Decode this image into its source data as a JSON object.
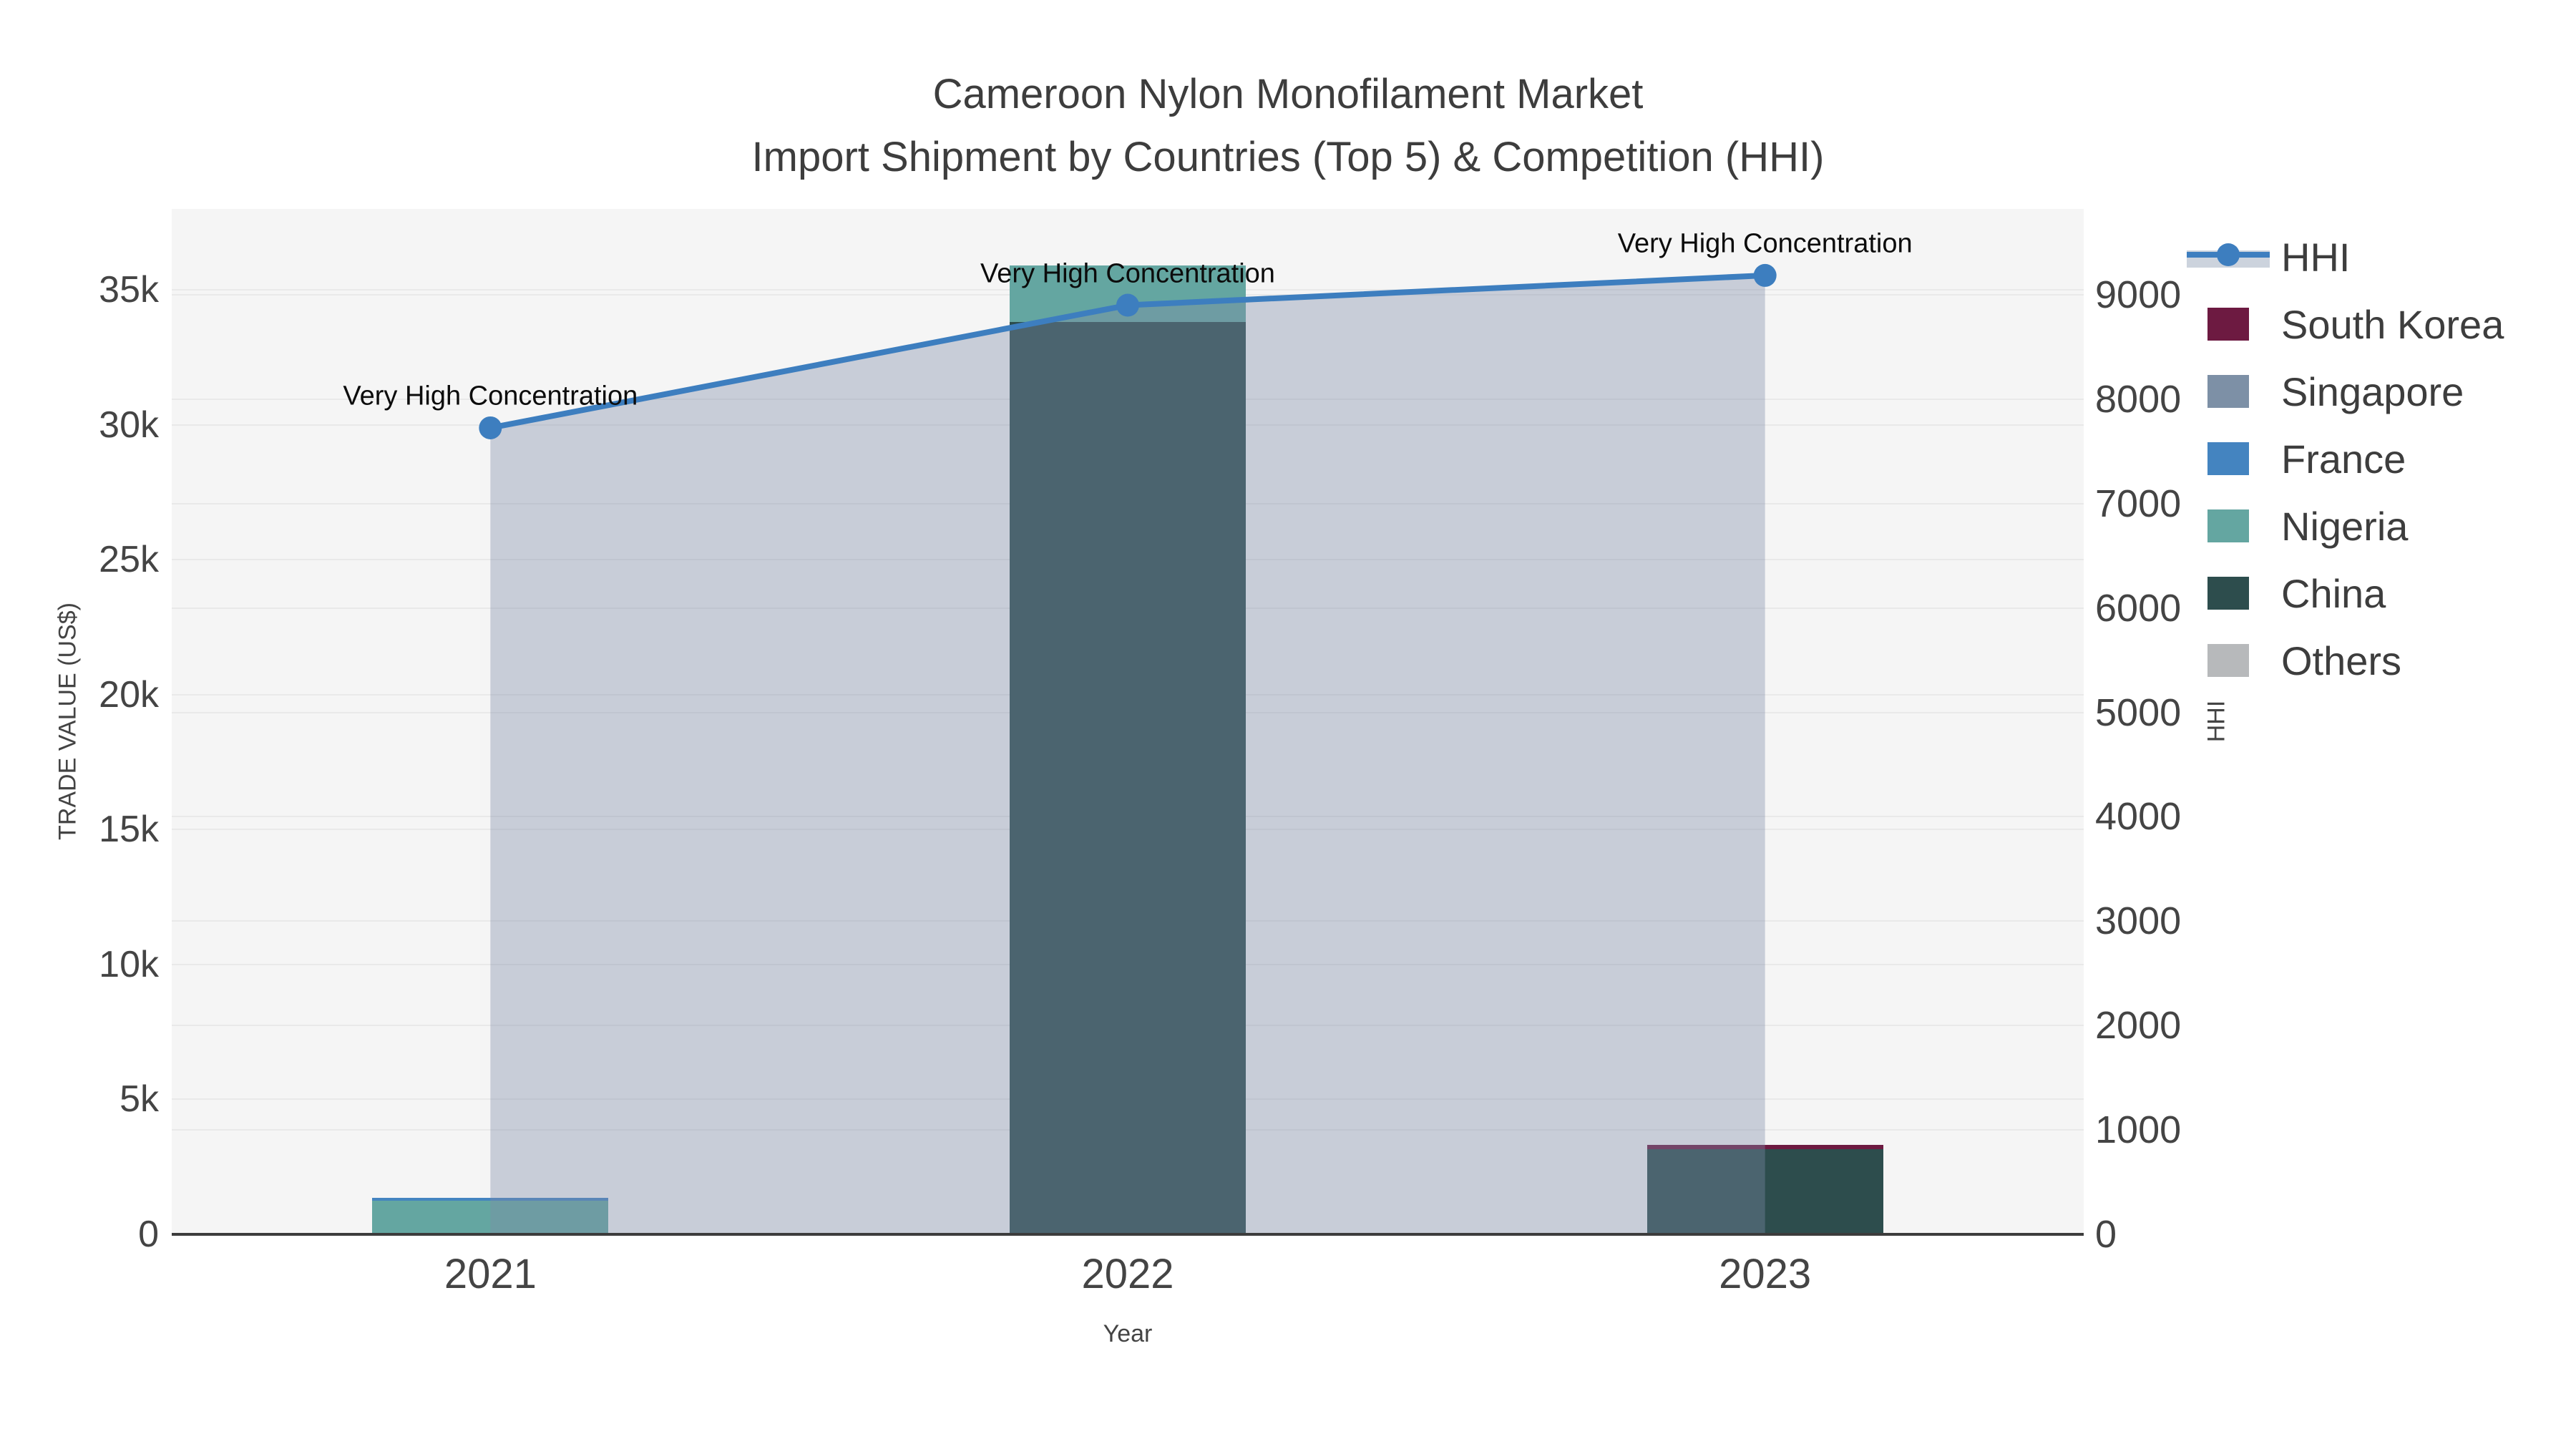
{
  "title": {
    "line1": "Cameroon Nylon Monofilament Market",
    "line2": "Import Shipment by Countries (Top 5) & Competition (HHI)"
  },
  "axes": {
    "x": {
      "title": "Year",
      "categories": [
        "2021",
        "2022",
        "2023"
      ]
    },
    "y_left": {
      "title": "TRADE VALUE (US$)",
      "tick_labels": [
        "0",
        "5k",
        "10k",
        "15k",
        "20k",
        "25k",
        "30k",
        "35k"
      ],
      "tick_values": [
        0,
        5000,
        10000,
        15000,
        20000,
        25000,
        30000,
        35000
      ]
    },
    "y_right": {
      "title": "HHI",
      "tick_labels": [
        "0",
        "1000",
        "2000",
        "3000",
        "4000",
        "5000",
        "6000",
        "7000",
        "8000",
        "9000"
      ],
      "tick_values": [
        0,
        1000,
        2000,
        3000,
        4000,
        5000,
        6000,
        7000,
        8000,
        9000
      ]
    }
  },
  "legend": {
    "items": [
      {
        "label": "HHI",
        "icon": "hhi-line-marker-icon",
        "color": "#3d7ebf"
      },
      {
        "label": "South Korea",
        "icon": "square-swatch-icon",
        "color": "#6d1a41"
      },
      {
        "label": "Singapore",
        "icon": "square-swatch-icon",
        "color": "#7d90a6"
      },
      {
        "label": "France",
        "icon": "square-swatch-icon",
        "color": "#4484c0"
      },
      {
        "label": "Nigeria",
        "icon": "square-swatch-icon",
        "color": "#64a6a1"
      },
      {
        "label": "China",
        "icon": "square-swatch-icon",
        "color": "#2d4d4d"
      },
      {
        "label": "Others",
        "icon": "square-swatch-icon",
        "color": "#b7b9bb"
      }
    ]
  },
  "chart_data": {
    "type": "bar+line",
    "categories": [
      "2021",
      "2022",
      "2023"
    ],
    "bar_mode": "stacked",
    "stack_order_bottom_to_top": [
      "Others",
      "China",
      "Nigeria",
      "France",
      "Singapore",
      "South Korea"
    ],
    "bar_series": [
      {
        "name": "Others",
        "color": "#b7b9bb",
        "values": [
          0,
          0,
          0
        ]
      },
      {
        "name": "China",
        "color": "#2d4d4d",
        "values": [
          0,
          33800,
          3160
        ]
      },
      {
        "name": "Nigeria",
        "color": "#64a6a1",
        "values": [
          1240,
          2100,
          0
        ]
      },
      {
        "name": "France",
        "color": "#4484c0",
        "values": [
          120,
          0,
          0
        ]
      },
      {
        "name": "Singapore",
        "color": "#7d90a6",
        "values": [
          0,
          0,
          0
        ]
      },
      {
        "name": "South Korea",
        "color": "#6d1a41",
        "values": [
          0,
          0,
          160
        ]
      }
    ],
    "line_series": {
      "name": "HHI",
      "color": "#3d7ebf",
      "fill_color": "rgba(125,140,168,0.38)",
      "values": [
        7725,
        8900,
        9185
      ],
      "axis": "right"
    },
    "annotations": [
      {
        "text": "Very High Concentration",
        "category": "2021"
      },
      {
        "text": "Very High Concentration",
        "category": "2022"
      },
      {
        "text": "Very High Concentration",
        "category": "2023"
      }
    ],
    "xlabel": "Year",
    "ylabel_left": "TRADE VALUE (US$)",
    "ylabel_right": "HHI",
    "ylim_left": [
      0,
      38000
    ],
    "ylim_right": [
      0,
      9822
    ],
    "grid": "on",
    "legend_position": "right",
    "plot_bg": "#f5f5f5",
    "paper_bg": "#ffffff"
  }
}
